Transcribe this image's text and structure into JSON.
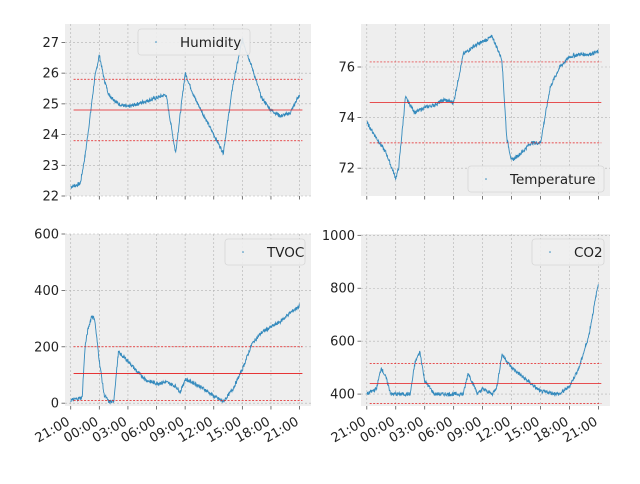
{
  "style": {
    "panel_bg": "#eeeeee",
    "grid_color": "#b2b2b2",
    "series_color": "#348abd",
    "mean_color": "#e41a1c",
    "band_color": "#e41a1c"
  },
  "x_tick_labels": [
    "21:00",
    "00:00",
    "03:00",
    "06:00",
    "09:00",
    "12:00",
    "15:00",
    "18:00",
    "21:00"
  ],
  "chart_data": [
    {
      "type": "line",
      "series": [
        {
          "name": "Humidity",
          "x": [
            0,
            1,
            1.5,
            2,
            2.5,
            3,
            3.5,
            4,
            5,
            6,
            7,
            8,
            9,
            10,
            11,
            12,
            13,
            14,
            15,
            16,
            17,
            18,
            19,
            20,
            21,
            22,
            23,
            24
          ],
          "values": [
            22.3,
            22.4,
            23.3,
            24.5,
            25.8,
            26.6,
            25.8,
            25.3,
            25.0,
            24.9,
            25.0,
            25.1,
            25.2,
            25.3,
            23.4,
            26.0,
            25.2,
            24.6,
            24.0,
            23.4,
            25.6,
            27.1,
            26.2,
            25.2,
            24.8,
            24.6,
            24.7,
            25.3
          ]
        }
      ],
      "mean": 24.8,
      "band": [
        23.8,
        25.8
      ],
      "ylim": [
        22,
        27.6
      ],
      "yticks": [
        22,
        23,
        24,
        25,
        26,
        27
      ],
      "legend": "top-center",
      "grid": true
    },
    {
      "type": "line",
      "series": [
        {
          "name": "Temperature",
          "x": [
            0,
            1,
            2,
            3,
            3.3,
            4,
            5,
            6,
            7,
            8,
            9,
            10,
            11,
            12,
            13,
            14,
            14.5,
            15,
            16,
            17,
            18,
            19,
            20,
            21,
            22,
            23,
            24
          ],
          "values": [
            73.8,
            73.2,
            72.6,
            71.6,
            72.0,
            74.8,
            74.2,
            74.4,
            74.5,
            74.7,
            74.6,
            76.5,
            76.8,
            77.0,
            77.2,
            76.3,
            73.2,
            72.3,
            72.6,
            73.0,
            73.0,
            75.2,
            76.0,
            76.4,
            76.5,
            76.5,
            76.6
          ]
        }
      ],
      "mean": 74.6,
      "band": [
        73.0,
        76.2
      ],
      "ylim": [
        70.9,
        77.7
      ],
      "yticks": [
        72,
        74,
        76
      ],
      "legend": "bottom-right",
      "grid": true
    },
    {
      "type": "line",
      "series": [
        {
          "name": "TVOC",
          "x": [
            0,
            1.2,
            1.5,
            1.8,
            2.2,
            2.5,
            3,
            3.5,
            4,
            4.5,
            5,
            6,
            7,
            8,
            9,
            10,
            11,
            11.5,
            12,
            13,
            14,
            15,
            16,
            17,
            18,
            19,
            20,
            21,
            22,
            23,
            24
          ],
          "values": [
            10,
            20,
            200,
            260,
            310,
            300,
            150,
            30,
            5,
            5,
            180,
            150,
            110,
            80,
            70,
            75,
            60,
            40,
            85,
            70,
            50,
            25,
            5,
            50,
            120,
            210,
            250,
            270,
            290,
            320,
            345
          ]
        }
      ],
      "mean": 105,
      "band": [
        10,
        200
      ],
      "ylim": [
        -10,
        600
      ],
      "yticks": [
        0,
        200,
        400,
        600
      ],
      "legend": "top-right",
      "grid": true
    },
    {
      "type": "line",
      "series": [
        {
          "name": "CO2",
          "x": [
            0,
            1,
            1.5,
            2,
            2.5,
            3,
            4,
            4.5,
            5,
            5.5,
            6,
            7,
            8,
            9,
            10,
            10.5,
            11,
            11.5,
            12,
            13,
            13.5,
            14,
            15,
            18,
            19,
            20,
            21,
            22,
            23,
            24
          ],
          "values": [
            400,
            420,
            500,
            460,
            400,
            400,
            400,
            400,
            520,
            560,
            450,
            400,
            400,
            400,
            400,
            480,
            440,
            400,
            420,
            400,
            430,
            550,
            500,
            410,
            405,
            400,
            430,
            500,
            620,
            820
          ]
        }
      ],
      "mean": 440,
      "band": [
        365,
        515
      ],
      "ylim": [
        355,
        1005
      ],
      "yticks": [
        400,
        600,
        800,
        1000
      ],
      "legend": "top-right",
      "grid": true
    }
  ]
}
